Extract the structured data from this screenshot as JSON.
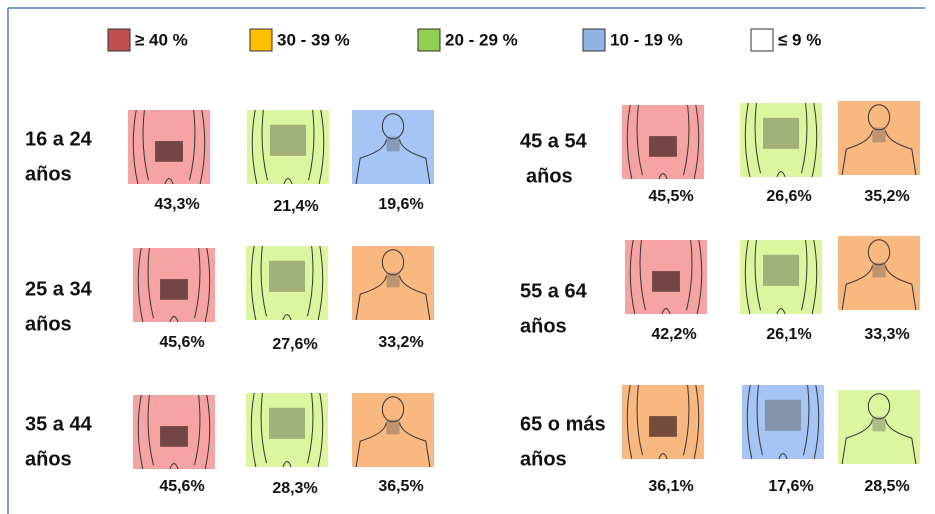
{
  "legend": [
    {
      "label": "≥ 40 %",
      "color": "#c0504d"
    },
    {
      "label": "30 - 39 %",
      "color": "#ffc000"
    },
    {
      "label": "20 - 29 %",
      "color": "#92d050"
    },
    {
      "label": "10 - 19 %",
      "color": "#8db4e2"
    },
    {
      "label": "≤ 9 %",
      "color": "#ffffff"
    }
  ],
  "groups": [
    {
      "lines": [
        "16 a 24",
        "años"
      ],
      "items": [
        {
          "label": "43,3%",
          "color": "#f6a3a3"
        },
        {
          "label": "21,4%",
          "color": "#dcf6a0"
        },
        {
          "label": "19,6%",
          "color": "#a6c4f4"
        }
      ]
    },
    {
      "lines": [
        "25 a 34",
        "años"
      ],
      "items": [
        {
          "label": "45,6%",
          "color": "#f6a3a3"
        },
        {
          "label": "27,6%",
          "color": "#dcf6a0"
        },
        {
          "label": "33,2%",
          "color": "#f9b880"
        }
      ]
    },
    {
      "lines": [
        "35 a 44",
        "años"
      ],
      "items": [
        {
          "label": "45,6%",
          "color": "#f6a3a3"
        },
        {
          "label": "28,3%",
          "color": "#dcf6a0"
        },
        {
          "label": "36,5%",
          "color": "#f9b880"
        }
      ]
    },
    {
      "lines": [
        "45 a 54",
        "años"
      ],
      "items": [
        {
          "label": "45,5%",
          "color": "#f6a3a3"
        },
        {
          "label": "26,6%",
          "color": "#dcf6a0"
        },
        {
          "label": "35,2%",
          "color": "#f9b880"
        }
      ]
    },
    {
      "lines": [
        "55 a 64",
        "años"
      ],
      "items": [
        {
          "label": "42,2%",
          "color": "#f6a3a3"
        },
        {
          "label": "26,1%",
          "color": "#dcf6a0"
        },
        {
          "label": "33,3%",
          "color": "#f9b880"
        }
      ]
    },
    {
      "lines": [
        "65 o más",
        "años"
      ],
      "items": [
        {
          "label": "36,1%",
          "color": "#f9b880"
        },
        {
          "label": "17,6%",
          "color": "#a6c4f4"
        },
        {
          "label": "28,5%",
          "color": "#dcf6a0"
        }
      ]
    }
  ]
}
